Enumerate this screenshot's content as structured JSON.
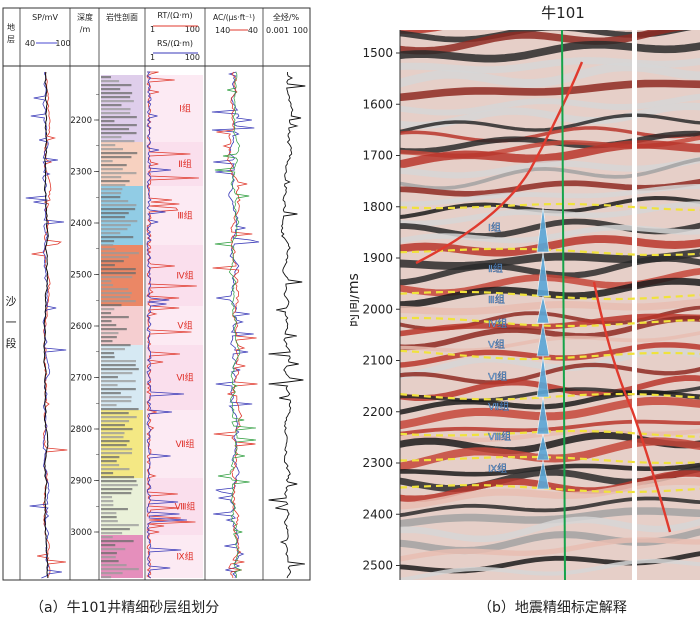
{
  "well_log": {
    "headers": {
      "stratum": "地层",
      "sp": "SP/mV",
      "sp_min": "40",
      "sp_max": "100",
      "depth": "深度/m",
      "lith": "岩性剖面",
      "rt": "RT/(Ω·m)",
      "rt_min": "1",
      "rt_max": "100",
      "rs": "RS/(Ω·m)",
      "rs_min": "1",
      "rs_max": "100",
      "ac": "AC/(μs·ft⁻¹)",
      "ac_min": "140",
      "ac_max": "40",
      "qj": "全烃/%",
      "qj_min": "0.001",
      "qj_max": "100"
    },
    "stratum_label": [
      "沙",
      "一",
      "段"
    ],
    "depth_ticks": [
      "2200",
      "2300",
      "2400",
      "2500",
      "2600",
      "2700",
      "2800",
      "2900",
      "3000"
    ],
    "groups": [
      "Ⅰ组",
      "Ⅱ组",
      "Ⅲ组",
      "Ⅳ组",
      "Ⅴ组",
      "Ⅵ组",
      "Ⅶ组",
      "Ⅷ组",
      "Ⅸ组"
    ],
    "group_colors": [
      "#d9c6e8",
      "#f6c9b5",
      "#7ec3e0",
      "#e8724a",
      "#f3c6c8",
      "#cfe5f1",
      "#f2e46e",
      "#e6eed2",
      "#e07bb0"
    ],
    "caption": "（a）牛101井精细砂层组划分"
  },
  "seismic": {
    "well_name": "牛101",
    "ylabel": "时间/ms",
    "time_ticks": [
      "1500",
      "1600",
      "1700",
      "1800",
      "1900",
      "2000",
      "2100",
      "2200",
      "2300",
      "2400",
      "2500"
    ],
    "group_labels": [
      "Ⅰ组",
      "Ⅱ组",
      "Ⅲ组",
      "Ⅳ组",
      "Ⅴ组",
      "Ⅵ组",
      "Ⅶ组",
      "Ⅷ组",
      "Ⅸ组"
    ],
    "caption": "（b）地震精细标定解释"
  },
  "colors": {
    "fault": "#e03a2e",
    "horizon": "#f0e23c",
    "well_line": "#16a34a",
    "group_text": "#e0312a",
    "marker": "#5aa7d8"
  }
}
